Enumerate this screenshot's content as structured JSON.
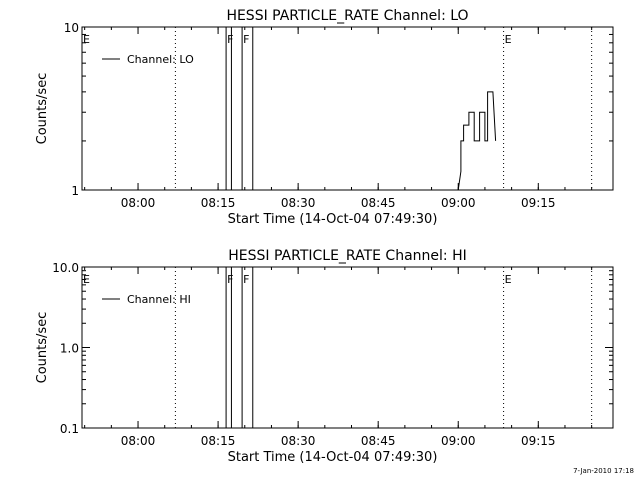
{
  "timestamp": "7-Jan-2010 17:18",
  "time_ticks": [
    "08:00",
    "08:15",
    "08:30",
    "08:45",
    "09:00",
    "09:15"
  ],
  "chart_data": [
    {
      "type": "line",
      "title": "HESSI PARTICLE_RATE Channel: LO",
      "xlabel": "Start Time (14-Oct-04 07:49:30)",
      "ylabel": "Counts/sec",
      "y_scale": "log",
      "ylim": [
        1,
        10
      ],
      "y_ticks": [
        "1",
        "10"
      ],
      "xlim": [
        "07:49:30",
        "09:29:00"
      ],
      "legend": {
        "label": "Channel: LO",
        "position": "top-left"
      },
      "series": [
        {
          "name": "Channel: LO",
          "points": [
            [
              "09:00:00",
              1
            ],
            [
              "09:00:30",
              1.3
            ],
            [
              "09:00:30",
              2
            ],
            [
              "09:01:00",
              2
            ],
            [
              "09:01:00",
              2.5
            ],
            [
              "09:02:00",
              2.5
            ],
            [
              "09:02:00",
              3
            ],
            [
              "09:03:00",
              3
            ],
            [
              "09:03:00",
              2
            ],
            [
              "09:04:00",
              2
            ],
            [
              "09:04:00",
              3
            ],
            [
              "09:05:00",
              3
            ],
            [
              "09:05:00",
              2
            ],
            [
              "09:05:30",
              2
            ],
            [
              "09:05:30",
              4
            ],
            [
              "09:06:30",
              4
            ],
            [
              "09:07:00",
              2
            ]
          ]
        }
      ],
      "shaded_vertical_lines": [
        "08:16:30",
        "08:17:30",
        "08:19:30",
        "08:21:30"
      ],
      "dotted_vertical_lines": [
        "08:07:00",
        "09:08:30",
        "09:25:00"
      ],
      "markers": [
        {
          "label": "E",
          "time": "07:49:30"
        },
        {
          "label": "F",
          "time": "08:16:30"
        },
        {
          "label": "F",
          "time": "08:19:30"
        },
        {
          "label": "E",
          "time": "09:08:30"
        }
      ]
    },
    {
      "type": "line",
      "title": "HESSI PARTICLE_RATE Channel: HI",
      "xlabel": "Start Time (14-Oct-04 07:49:30)",
      "ylabel": "Counts/sec",
      "y_scale": "log",
      "ylim": [
        0.1,
        10
      ],
      "y_ticks": [
        "0.1",
        "1.0",
        "10.0"
      ],
      "xlim": [
        "07:49:30",
        "09:29:00"
      ],
      "legend": {
        "label": "Channel: HI",
        "position": "top-left"
      },
      "series": [
        {
          "name": "Channel: HI",
          "points": []
        }
      ],
      "shaded_vertical_lines": [
        "08:16:30",
        "08:17:30",
        "08:19:30",
        "08:21:30"
      ],
      "dotted_vertical_lines": [
        "08:07:00",
        "09:08:30",
        "09:25:00"
      ],
      "markers": [
        {
          "label": "E",
          "time": "07:49:30"
        },
        {
          "label": "F",
          "time": "08:16:30"
        },
        {
          "label": "F",
          "time": "08:19:30"
        },
        {
          "label": "E",
          "time": "09:08:30"
        }
      ]
    }
  ]
}
